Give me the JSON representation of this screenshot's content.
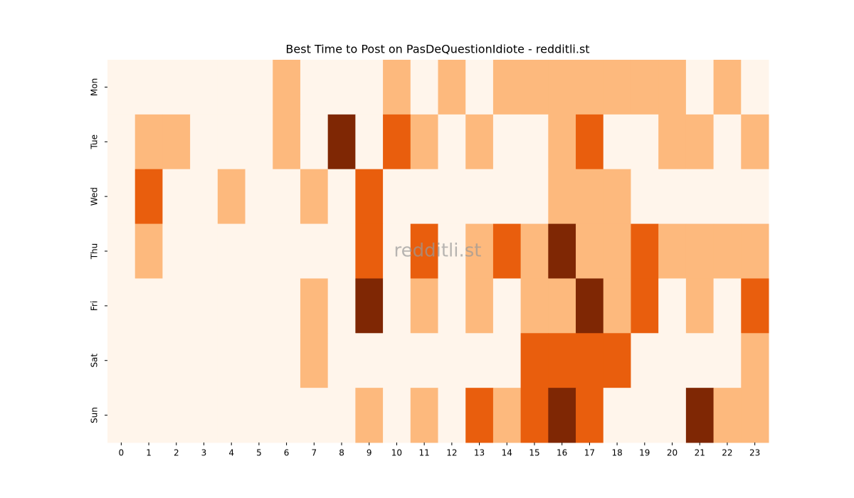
{
  "chart_data": {
    "type": "heatmap",
    "title": "Best Time to Post on PasDeQuestionIdiote - redditli.st",
    "watermark": "redditli.st",
    "x": [
      0,
      1,
      2,
      3,
      4,
      5,
      6,
      7,
      8,
      9,
      10,
      11,
      12,
      13,
      14,
      15,
      16,
      17,
      18,
      19,
      20,
      21,
      22,
      23
    ],
    "categories": [
      "Mon",
      "Tue",
      "Wed",
      "Thu",
      "Fri",
      "Sat",
      "Sun"
    ],
    "values": [
      [
        0,
        0,
        0,
        0,
        0,
        0,
        1,
        0,
        0,
        0,
        1,
        0,
        1,
        0,
        1,
        1,
        1,
        1,
        1,
        1,
        1,
        0,
        1,
        0
      ],
      [
        0,
        1,
        1,
        0,
        0,
        0,
        1,
        0,
        3,
        0,
        2,
        1,
        0,
        1,
        0,
        0,
        1,
        2,
        0,
        0,
        1,
        1,
        0,
        1
      ],
      [
        0,
        2,
        0,
        0,
        1,
        0,
        0,
        1,
        0,
        2,
        0,
        0,
        0,
        0,
        0,
        0,
        1,
        1,
        1,
        0,
        0,
        0,
        0,
        0
      ],
      [
        0,
        1,
        0,
        0,
        0,
        0,
        0,
        0,
        0,
        2,
        0,
        2,
        0,
        1,
        2,
        1,
        3,
        1,
        1,
        2,
        1,
        1,
        1,
        1
      ],
      [
        0,
        0,
        0,
        0,
        0,
        0,
        0,
        1,
        0,
        3,
        0,
        1,
        0,
        1,
        0,
        1,
        1,
        3,
        1,
        2,
        0,
        1,
        0,
        2
      ],
      [
        0,
        0,
        0,
        0,
        0,
        0,
        0,
        1,
        0,
        0,
        0,
        0,
        0,
        0,
        0,
        2,
        2,
        2,
        2,
        0,
        0,
        0,
        0,
        1
      ],
      [
        0,
        0,
        0,
        0,
        0,
        0,
        0,
        0,
        0,
        1,
        0,
        1,
        0,
        2,
        1,
        2,
        3,
        2,
        0,
        0,
        0,
        3,
        1,
        1
      ]
    ],
    "zlim": [
      0,
      3
    ],
    "colors": [
      "#fff5eb",
      "#fdb97d",
      "#e95e0d",
      "#7f2704"
    ]
  }
}
